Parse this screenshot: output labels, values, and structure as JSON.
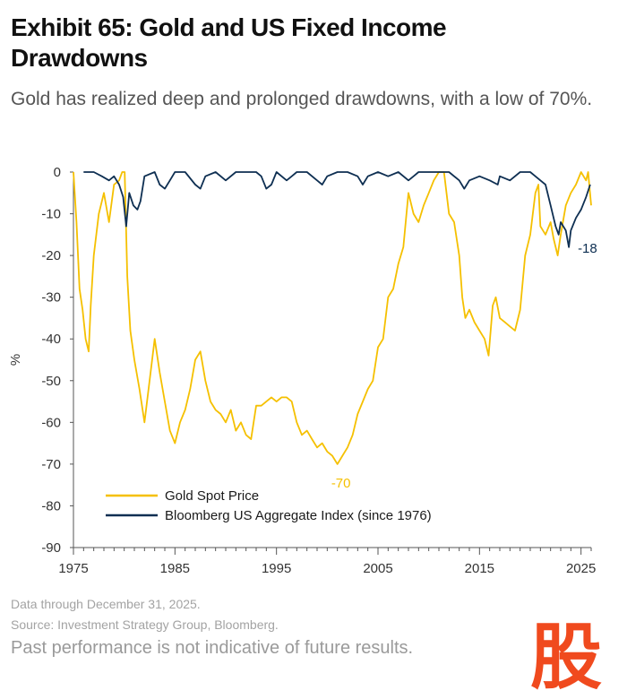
{
  "header": {
    "title": "Exhibit 65: Gold and US Fixed Income Drawdowns",
    "subtitle": "Gold has realized deep and prolonged drawdowns, with a low of 70%."
  },
  "footer": {
    "data_note": "Data through December 31, 2025.",
    "source": "Source: Investment Strategy Group, Bloomberg.",
    "disclaimer": "Past performance is not indicative of future results.",
    "brand_mark": "股"
  },
  "colors": {
    "gold": "#F5C000",
    "bond": "#0E2F52",
    "axis": "#555555",
    "brand_red": "#F04A1E"
  },
  "chart_data": {
    "type": "line",
    "title": "Exhibit 65: Gold and US Fixed Income Drawdowns",
    "xlabel": "",
    "ylabel": "%",
    "xlim": [
      1975,
      2026
    ],
    "ylim": [
      -90,
      0
    ],
    "x_ticks": [
      1975,
      1985,
      1995,
      2005,
      2015,
      2025
    ],
    "y_ticks": [
      0,
      -10,
      -20,
      -30,
      -40,
      -50,
      -60,
      -70,
      -80,
      -90
    ],
    "grid": false,
    "legend_position": "bottom-left",
    "series": [
      {
        "name": "Gold Spot Price",
        "color": "#F5C000",
        "x": [
          1975.0,
          1975.3,
          1975.6,
          1975.9,
          1976.2,
          1976.5,
          1976.7,
          1977.0,
          1977.5,
          1978.0,
          1978.5,
          1979.0,
          1979.5,
          1979.8,
          1980.05,
          1980.3,
          1980.6,
          1981.0,
          1981.5,
          1982.0,
          1982.5,
          1983.0,
          1983.5,
          1984.0,
          1984.5,
          1985.0,
          1985.5,
          1986.0,
          1986.5,
          1987.0,
          1987.5,
          1988.0,
          1988.5,
          1989.0,
          1989.5,
          1990.0,
          1990.5,
          1991.0,
          1991.5,
          1992.0,
          1992.5,
          1993.0,
          1993.5,
          1994.0,
          1994.5,
          1995.0,
          1995.5,
          1996.0,
          1996.5,
          1997.0,
          1997.5,
          1998.0,
          1998.5,
          1999.0,
          1999.5,
          2000.0,
          2000.5,
          2001.0,
          2001.5,
          2002.0,
          2002.5,
          2003.0,
          2003.5,
          2004.0,
          2004.5,
          2005.0,
          2005.5,
          2006.0,
          2006.5,
          2007.0,
          2007.5,
          2008.0,
          2008.5,
          2009.0,
          2009.5,
          2010.0,
          2010.5,
          2011.0,
          2011.5,
          2012.0,
          2012.5,
          2013.0,
          2013.3,
          2013.6,
          2014.0,
          2014.5,
          2015.0,
          2015.5,
          2015.9,
          2016.3,
          2016.6,
          2017.0,
          2017.5,
          2018.0,
          2018.5,
          2019.0,
          2019.5,
          2020.0,
          2020.5,
          2020.8,
          2021.0,
          2021.5,
          2022.0,
          2022.3,
          2022.7,
          2023.0,
          2023.5,
          2024.0,
          2024.5,
          2025.0,
          2025.5,
          2025.7,
          2026.0
        ],
        "values": [
          0,
          -12,
          -28,
          -33,
          -40,
          -43,
          -32,
          -20,
          -10,
          -5,
          -12,
          -3,
          -2,
          0,
          0,
          -25,
          -38,
          -45,
          -52,
          -60,
          -50,
          -40,
          -48,
          -55,
          -62,
          -65,
          -60,
          -57,
          -52,
          -45,
          -43,
          -50,
          -55,
          -57,
          -58,
          -60,
          -57,
          -62,
          -60,
          -63,
          -64,
          -56,
          -56,
          -55,
          -54,
          -55,
          -54,
          -54,
          -55,
          -60,
          -63,
          -62,
          -64,
          -66,
          -65,
          -67,
          -68,
          -70,
          -68,
          -66,
          -63,
          -58,
          -55,
          -52,
          -50,
          -42,
          -40,
          -30,
          -28,
          -22,
          -18,
          -5,
          -10,
          -12,
          -8,
          -5,
          -2,
          0,
          0,
          -10,
          -12,
          -20,
          -30,
          -35,
          -33,
          -36,
          -38,
          -40,
          -44,
          -32,
          -30,
          -35,
          -36,
          -37,
          -38,
          -33,
          -20,
          -15,
          -5,
          -3,
          -13,
          -15,
          -12,
          -16,
          -20,
          -15,
          -8,
          -5,
          -3,
          0,
          -2,
          0,
          -8
        ]
      },
      {
        "name": "Bloomberg US Aggregate Index (since 1976)",
        "color": "#0E2F52",
        "x": [
          1976.0,
          1977.0,
          1977.8,
          1978.5,
          1979.0,
          1979.5,
          1979.9,
          1980.2,
          1980.5,
          1980.9,
          1981.3,
          1981.6,
          1982.0,
          1983.0,
          1983.5,
          1984.0,
          1984.5,
          1985.0,
          1986.0,
          1987.0,
          1987.5,
          1988.0,
          1989.0,
          1990.0,
          1991.0,
          1992.0,
          1993.0,
          1993.5,
          1994.0,
          1994.5,
          1995.0,
          1996.0,
          1996.5,
          1997.0,
          1998.0,
          1999.0,
          1999.5,
          2000.0,
          2001.0,
          2002.0,
          2003.0,
          2003.5,
          2004.0,
          2005.0,
          2006.0,
          2007.0,
          2008.0,
          2008.5,
          2009.0,
          2010.0,
          2011.0,
          2012.0,
          2013.0,
          2013.5,
          2014.0,
          2015.0,
          2016.0,
          2016.8,
          2017.0,
          2018.0,
          2019.0,
          2020.0,
          2020.5,
          2021.0,
          2021.5,
          2022.0,
          2022.5,
          2022.8,
          2023.0,
          2023.5,
          2023.8,
          2024.0,
          2024.5,
          2025.0,
          2025.5,
          2025.9
        ],
        "values": [
          0,
          0,
          -1,
          -2,
          -1,
          -3,
          -6,
          -13,
          -5,
          -8,
          -9,
          -7,
          -1,
          0,
          -3,
          -4,
          -2,
          0,
          0,
          -3,
          -4,
          -1,
          0,
          -2,
          0,
          0,
          0,
          -1,
          -4,
          -3,
          0,
          -2,
          -1,
          0,
          0,
          -2,
          -3,
          -1,
          0,
          0,
          -1,
          -3,
          -1,
          0,
          -1,
          0,
          -2,
          -1,
          0,
          0,
          0,
          0,
          -2,
          -4,
          -2,
          -1,
          -2,
          -3,
          -1,
          -2,
          0,
          0,
          -1,
          -2,
          -3,
          -8,
          -13,
          -15,
          -12,
          -14,
          -18,
          -14,
          -11,
          -9,
          -6,
          -3
        ]
      }
    ],
    "annotations": [
      {
        "text": "-70",
        "x": 2001.0,
        "y": -70,
        "series": "Gold Spot Price"
      },
      {
        "text": "-18",
        "x": 2023.8,
        "y": -18,
        "series": "Bloomberg US Aggregate Index (since 1976)"
      }
    ]
  }
}
